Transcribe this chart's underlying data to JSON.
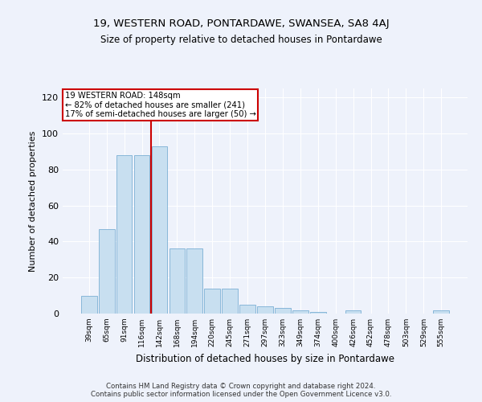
{
  "title1": "19, WESTERN ROAD, PONTARDAWE, SWANSEA, SA8 4AJ",
  "title2": "Size of property relative to detached houses in Pontardawe",
  "xlabel": "Distribution of detached houses by size in Pontardawe",
  "ylabel": "Number of detached properties",
  "categories": [
    "39sqm",
    "65sqm",
    "91sqm",
    "116sqm",
    "142sqm",
    "168sqm",
    "194sqm",
    "220sqm",
    "245sqm",
    "271sqm",
    "297sqm",
    "323sqm",
    "349sqm",
    "374sqm",
    "400sqm",
    "426sqm",
    "452sqm",
    "478sqm",
    "503sqm",
    "529sqm",
    "555sqm"
  ],
  "values": [
    10,
    47,
    88,
    88,
    93,
    36,
    36,
    14,
    14,
    5,
    4,
    3,
    2,
    1,
    0,
    2,
    0,
    0,
    0,
    0,
    2
  ],
  "bar_color": "#c8dff0",
  "bar_edge_color": "#7bafd4",
  "vline_index": 4,
  "annotation_line1": "19 WESTERN ROAD: 148sqm",
  "annotation_line2": "← 82% of detached houses are smaller (241)",
  "annotation_line3": "17% of semi-detached houses are larger (50) →",
  "annotation_box_color": "#ffffff",
  "annotation_box_edge_color": "#cc0000",
  "vline_color": "#cc0000",
  "background_color": "#eef2fb",
  "grid_color": "#ffffff",
  "ylim": [
    0,
    125
  ],
  "yticks": [
    0,
    20,
    40,
    60,
    80,
    100,
    120
  ],
  "footer1": "Contains HM Land Registry data © Crown copyright and database right 2024.",
  "footer2": "Contains public sector information licensed under the Open Government Licence v3.0."
}
